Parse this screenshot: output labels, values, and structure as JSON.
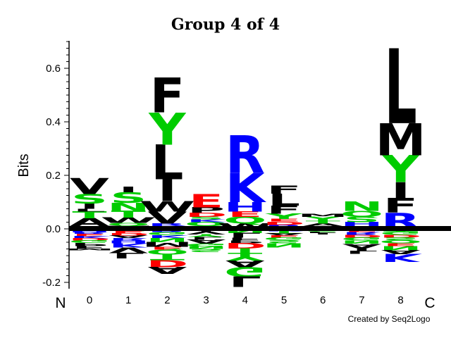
{
  "chart_data": {
    "type": "sequence-logo",
    "title": "Group 4 of 4",
    "ylabel": "Bits",
    "ylim": [
      -0.22,
      0.72
    ],
    "yticks": [
      -0.2,
      0.0,
      0.2,
      0.4,
      0.6
    ],
    "ytick_labels": [
      "-0.2",
      "0.0",
      "0.2",
      "0.4",
      "0.6"
    ],
    "positions": [
      "0",
      "1",
      "2",
      "3",
      "4",
      "5",
      "6",
      "7",
      "8"
    ],
    "n_label": "N",
    "c_label": "C",
    "credit": "Created by Seq2Logo",
    "colors": {
      "hydrophobic": "#000000",
      "polar": "#00cc00",
      "basic": "#0000ff",
      "acidic": "#ff0000"
    },
    "columns": [
      {
        "position": "0",
        "pos": [
          [
            "Y",
            0.01
          ],
          [
            "A",
            0.03
          ],
          [
            "T",
            0.025
          ],
          [
            "L",
            0.01
          ],
          [
            "I",
            0.02
          ],
          [
            "S",
            0.035
          ],
          [
            "V",
            0.06
          ]
        ],
        "neg": [
          [
            "Q",
            0.006
          ],
          [
            "H",
            0.006
          ],
          [
            "R",
            0.006
          ],
          [
            "E",
            0.008
          ],
          [
            "K",
            0.008
          ],
          [
            "D",
            0.008
          ],
          [
            "G",
            0.01
          ],
          [
            "P",
            0.012
          ],
          [
            "F",
            0.01
          ],
          [
            "M",
            0.006
          ]
        ]
      },
      {
        "position": "1",
        "pos": [
          [
            "M",
            0.012
          ],
          [
            "Q",
            0.01
          ],
          [
            "W",
            0.02
          ],
          [
            "T",
            0.025
          ],
          [
            "N",
            0.03
          ],
          [
            "S",
            0.04
          ],
          [
            "I",
            0.02
          ]
        ],
        "neg": [
          [
            "G",
            0.008
          ],
          [
            "E",
            0.008
          ],
          [
            "D",
            0.008
          ],
          [
            "A",
            0.01
          ],
          [
            "R",
            0.01
          ],
          [
            "H",
            0.01
          ],
          [
            "K",
            0.016
          ],
          [
            "V",
            0.02
          ],
          [
            "L",
            0.02
          ]
        ]
      },
      {
        "position": "2",
        "pos": [
          [
            "H",
            0.01
          ],
          [
            "R",
            0.01
          ],
          [
            "V",
            0.045
          ],
          [
            "W",
            0.04
          ],
          [
            "I",
            0.08
          ],
          [
            "L",
            0.13
          ],
          [
            "Y",
            0.12
          ],
          [
            "F",
            0.13
          ]
        ],
        "neg": [
          [
            "R",
            0.012
          ],
          [
            "G",
            0.012
          ],
          [
            "K",
            0.01
          ],
          [
            "N",
            0.015
          ],
          [
            "M",
            0.018
          ],
          [
            "E",
            0.01
          ],
          [
            "Q",
            0.018
          ],
          [
            "T",
            0.022
          ],
          [
            "D",
            0.025
          ],
          [
            "A",
            0.025
          ]
        ]
      },
      {
        "position": "3",
        "pos": [
          [
            "T",
            0.01
          ],
          [
            "Q",
            0.015
          ],
          [
            "K",
            0.01
          ],
          [
            "S",
            0.01
          ],
          [
            "D",
            0.015
          ],
          [
            "P",
            0.02
          ],
          [
            "E",
            0.05
          ]
        ],
        "neg": [
          [
            "I",
            0.01
          ],
          [
            "V",
            0.01
          ],
          [
            "Y",
            0.01
          ],
          [
            "L",
            0.01
          ],
          [
            "A",
            0.015
          ],
          [
            "G",
            0.01
          ],
          [
            "N",
            0.01
          ],
          [
            "S",
            0.012
          ]
        ]
      },
      {
        "position": "4",
        "pos": [
          [
            "W",
            0.02
          ],
          [
            "Q",
            0.025
          ],
          [
            "E",
            0.02
          ],
          [
            "H",
            0.035
          ],
          [
            "K",
            0.11
          ],
          [
            "R",
            0.14
          ]
        ],
        "neg": [
          [
            "N",
            0.015
          ],
          [
            "L",
            0.018
          ],
          [
            "F",
            0.01
          ],
          [
            "P",
            0.01
          ],
          [
            "D",
            0.02
          ],
          [
            "T",
            0.02
          ],
          [
            "Y",
            0.025
          ],
          [
            "A",
            0.025
          ],
          [
            "G",
            0.035
          ],
          [
            "L",
            0.04
          ]
        ]
      },
      {
        "position": "5",
        "pos": [
          [
            "R",
            0.015
          ],
          [
            "D",
            0.012
          ],
          [
            "E",
            0.01
          ],
          [
            "Y",
            0.02
          ],
          [
            "F",
            0.03
          ],
          [
            "L",
            0.045
          ],
          [
            "F",
            0.03
          ]
        ],
        "neg": [
          [
            "K",
            0.008
          ],
          [
            "T",
            0.008
          ],
          [
            "A",
            0.008
          ],
          [
            "E",
            0.008
          ],
          [
            "G",
            0.01
          ],
          [
            "S",
            0.012
          ],
          [
            "N",
            0.015
          ]
        ]
      },
      {
        "position": "6",
        "pos": [
          [
            "L",
            0.01
          ],
          [
            "A",
            0.01
          ],
          [
            "T",
            0.01
          ],
          [
            "Y",
            0.015
          ],
          [
            "M",
            0.012
          ]
        ],
        "neg": [
          [
            "G",
            0.005
          ],
          [
            "S",
            0.006
          ],
          [
            "F",
            0.005
          ],
          [
            "I",
            0.005
          ]
        ]
      },
      {
        "position": "7",
        "pos": [
          [
            "E",
            0.01
          ],
          [
            "H",
            0.015
          ],
          [
            "S",
            0.02
          ],
          [
            "Q",
            0.022
          ],
          [
            "N",
            0.035
          ]
        ],
        "neg": [
          [
            "E",
            0.012
          ],
          [
            "R",
            0.01
          ],
          [
            "D",
            0.01
          ],
          [
            "G",
            0.012
          ],
          [
            "N",
            0.012
          ],
          [
            "A",
            0.015
          ],
          [
            "I",
            0.01
          ],
          [
            "L",
            0.012
          ]
        ]
      },
      {
        "position": "8",
        "pos": [
          [
            "R",
            0.06
          ],
          [
            "F",
            0.055
          ],
          [
            "I",
            0.06
          ],
          [
            "Y",
            0.1
          ],
          [
            "M",
            0.12
          ],
          [
            "L",
            0.28
          ]
        ],
        "neg": [
          [
            "T",
            0.01
          ],
          [
            "G",
            0.012
          ],
          [
            "D",
            0.01
          ],
          [
            "S",
            0.01
          ],
          [
            "Q",
            0.012
          ],
          [
            "E",
            0.01
          ],
          [
            "N",
            0.015
          ],
          [
            "A",
            0.015
          ],
          [
            "K",
            0.03
          ]
        ]
      }
    ]
  }
}
